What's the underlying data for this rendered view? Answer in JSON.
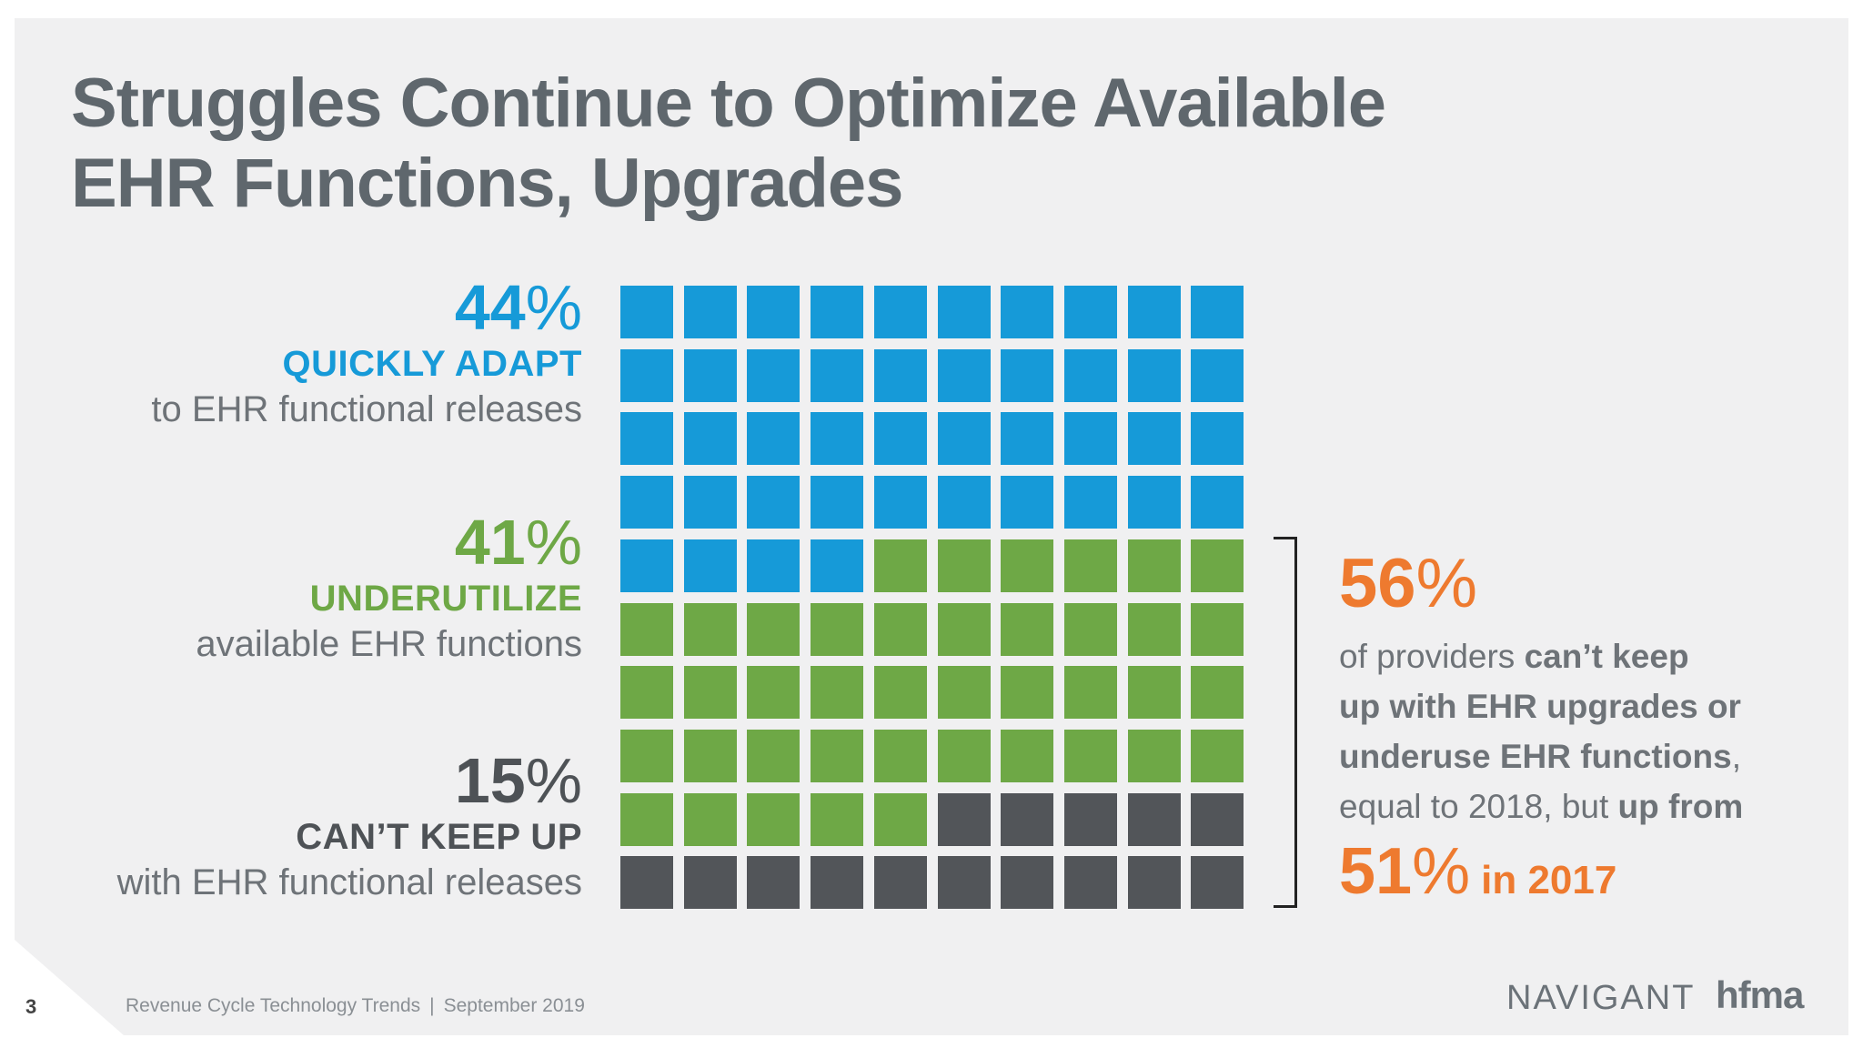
{
  "title": {
    "line1": "Struggles Continue to Optimize Available",
    "line2": "EHR Functions, Upgrades"
  },
  "labels": [
    {
      "pct": "44",
      "sym": "%",
      "caption": "QUICKLY ADAPT",
      "sub": "to EHR functional releases",
      "color": "#169ad8"
    },
    {
      "pct": "41",
      "sym": "%",
      "caption": "UNDERUTILIZE",
      "sub": "available EHR functions",
      "color": "#6ea846"
    },
    {
      "pct": "15",
      "sym": "%",
      "caption": "CAN’T KEEP UP",
      "sub": "with EHR functional releases",
      "color": "#4e5256"
    }
  ],
  "chart_data": {
    "type": "waffle",
    "grid": {
      "rows": 10,
      "cols": 10
    },
    "categories": [
      "QUICKLY ADAPT",
      "UNDERUTILIZE",
      "CAN’T KEEP UP"
    ],
    "values": [
      44,
      41,
      15
    ],
    "colors": [
      "#169ad8",
      "#6ea846",
      "#525559"
    ]
  },
  "callout": {
    "pct": "56",
    "sym": "%",
    "t1": "of providers ",
    "b1": "can’t keep",
    "b2": "up with EHR upgrades or",
    "b3": "underuse EHR functions",
    "t3": ",",
    "t4": "equal to 2018, but ",
    "b4": "up from",
    "last_pct": "51",
    "last_sym": "%",
    "last_in": "in 2017",
    "color": "#ee7a2f"
  },
  "footer": {
    "page": "3",
    "text": "Revenue Cycle Technology Trends",
    "sep": "|",
    "date": "September 2019"
  },
  "logos": {
    "navigant": "NAVIGANT",
    "hfma": "hfma"
  }
}
